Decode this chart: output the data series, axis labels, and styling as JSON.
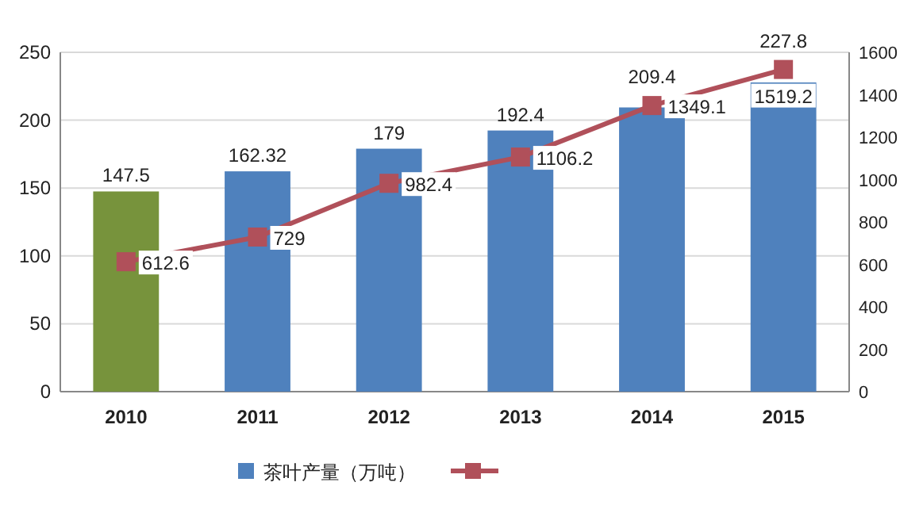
{
  "chart_data": {
    "type": "bar",
    "categories": [
      "2010",
      "2011",
      "2012",
      "2013",
      "2014",
      "2015"
    ],
    "series": [
      {
        "name": "茶叶产量（万吨）",
        "color": "#4f81bd",
        "colors": [
          "#77933c",
          "#4f81bd",
          "#4f81bd",
          "#4f81bd",
          "#4f81bd",
          "#4f81bd"
        ],
        "values": [
          147.5,
          162.32,
          179,
          192.4,
          209.4,
          227.8
        ]
      },
      {
        "type": "line",
        "axis": "y2",
        "color": "#b0505a",
        "marker": "square",
        "values": [
          612.6,
          729,
          982.4,
          1106.2,
          1349.1,
          1519.2
        ]
      }
    ],
    "ylim": [
      0,
      250
    ],
    "yticks": [
      0,
      50,
      100,
      150,
      200,
      250
    ],
    "y2lim": [
      0,
      1600
    ],
    "y2ticks": [
      0,
      200,
      400,
      600,
      800,
      1000,
      1200,
      1400,
      1600
    ],
    "grid": "y",
    "legend": "bottom",
    "data_labels": true
  }
}
